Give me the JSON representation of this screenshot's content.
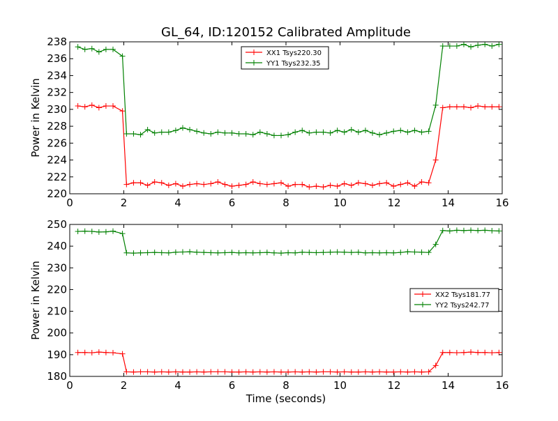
{
  "figure": {
    "title": "GL_64, ID:120152 Calibrated Amplitude"
  },
  "chart_data": [
    {
      "type": "line",
      "title": "GL_64, ID:120152 Calibrated Amplitude",
      "xlabel": "",
      "ylabel": "Power in Kelvin",
      "xlim": [
        0,
        16
      ],
      "ylim": [
        220,
        238
      ],
      "xticks": [
        "0",
        "2",
        "4",
        "6",
        "8",
        "10",
        "12",
        "14",
        "16"
      ],
      "yticks": [
        "220",
        "222",
        "224",
        "226",
        "228",
        "230",
        "232",
        "234",
        "236",
        "238"
      ],
      "grid": false,
      "legend_position": "top-center",
      "x": [
        0.3,
        0.56,
        0.82,
        1.08,
        1.34,
        1.6,
        1.95,
        2.1,
        2.36,
        2.62,
        2.88,
        3.14,
        3.4,
        3.66,
        3.92,
        4.18,
        4.44,
        4.7,
        4.96,
        5.22,
        5.48,
        5.74,
        6.0,
        6.26,
        6.52,
        6.78,
        7.04,
        7.3,
        7.56,
        7.82,
        8.08,
        8.34,
        8.6,
        8.86,
        9.12,
        9.38,
        9.64,
        9.9,
        10.16,
        10.42,
        10.68,
        10.94,
        11.2,
        11.46,
        11.72,
        11.98,
        12.24,
        12.5,
        12.76,
        13.02,
        13.28,
        13.54,
        13.8,
        14.06,
        14.32,
        14.58,
        14.84,
        15.1,
        15.36,
        15.62,
        15.88
      ],
      "series": [
        {
          "name": "XX1 Tsys220.30",
          "color": "#ff0000",
          "values": [
            230.4,
            230.3,
            230.5,
            230.2,
            230.4,
            230.4,
            229.8,
            221.1,
            221.3,
            221.3,
            221.0,
            221.4,
            221.3,
            221.0,
            221.2,
            220.9,
            221.1,
            221.2,
            221.1,
            221.2,
            221.4,
            221.1,
            220.9,
            221.0,
            221.1,
            221.4,
            221.2,
            221.1,
            221.2,
            221.3,
            220.9,
            221.1,
            221.1,
            220.8,
            220.9,
            220.8,
            221.0,
            220.9,
            221.2,
            221.0,
            221.3,
            221.2,
            221.0,
            221.2,
            221.3,
            220.9,
            221.1,
            221.3,
            220.9,
            221.4,
            221.3,
            224.0,
            230.2,
            230.3,
            230.3,
            230.3,
            230.2,
            230.4,
            230.3,
            230.3,
            230.3
          ]
        },
        {
          "name": "YY1 Tsys232.35",
          "color": "#008000",
          "values": [
            237.4,
            237.1,
            237.2,
            236.8,
            237.1,
            237.1,
            236.3,
            227.1,
            227.1,
            227.0,
            227.6,
            227.2,
            227.3,
            227.3,
            227.5,
            227.8,
            227.6,
            227.4,
            227.2,
            227.1,
            227.3,
            227.2,
            227.2,
            227.1,
            227.1,
            227.0,
            227.3,
            227.1,
            226.9,
            226.9,
            227.0,
            227.3,
            227.5,
            227.2,
            227.3,
            227.3,
            227.2,
            227.5,
            227.3,
            227.6,
            227.3,
            227.5,
            227.2,
            227.0,
            227.2,
            227.4,
            227.5,
            227.3,
            227.5,
            227.3,
            227.4,
            230.5,
            237.5,
            237.5,
            237.5,
            237.7,
            237.4,
            237.6,
            237.7,
            237.5,
            237.7
          ]
        }
      ]
    },
    {
      "type": "line",
      "title": "",
      "xlabel": "Time (seconds)",
      "ylabel": "Power in Kelvin",
      "xlim": [
        0,
        16
      ],
      "ylim": [
        180,
        250
      ],
      "xticks": [
        "0",
        "2",
        "4",
        "6",
        "8",
        "10",
        "12",
        "14",
        "16"
      ],
      "yticks": [
        "180",
        "190",
        "200",
        "210",
        "220",
        "230",
        "240",
        "250"
      ],
      "grid": false,
      "legend_position": "center-right",
      "x": [
        0.3,
        0.56,
        0.82,
        1.08,
        1.34,
        1.6,
        1.95,
        2.1,
        2.36,
        2.62,
        2.88,
        3.14,
        3.4,
        3.66,
        3.92,
        4.18,
        4.44,
        4.7,
        4.96,
        5.22,
        5.48,
        5.74,
        6.0,
        6.26,
        6.52,
        6.78,
        7.04,
        7.3,
        7.56,
        7.82,
        8.08,
        8.34,
        8.6,
        8.86,
        9.12,
        9.38,
        9.64,
        9.9,
        10.16,
        10.42,
        10.68,
        10.94,
        11.2,
        11.46,
        11.72,
        11.98,
        12.24,
        12.5,
        12.76,
        13.02,
        13.28,
        13.54,
        13.8,
        14.06,
        14.32,
        14.58,
        14.84,
        15.1,
        15.36,
        15.62,
        15.88
      ],
      "series": [
        {
          "name": "XX2 Tsys181.77",
          "color": "#ff0000",
          "values": [
            191.0,
            191.0,
            190.9,
            191.2,
            191.0,
            190.9,
            190.4,
            182.1,
            182.0,
            182.1,
            182.1,
            182.0,
            182.1,
            182.0,
            182.1,
            182.0,
            182.0,
            182.1,
            182.0,
            182.1,
            182.1,
            182.1,
            182.0,
            182.0,
            182.1,
            182.0,
            182.1,
            182.0,
            182.1,
            182.0,
            182.0,
            182.1,
            182.0,
            182.1,
            182.0,
            182.1,
            182.1,
            182.0,
            182.1,
            182.0,
            182.0,
            182.1,
            182.0,
            182.1,
            182.0,
            182.0,
            182.1,
            182.0,
            182.1,
            182.0,
            182.1,
            185.0,
            191.0,
            191.0,
            190.9,
            191.0,
            191.2,
            191.0,
            191.0,
            190.9,
            191.0
          ]
        },
        {
          "name": "YY2 Tsys242.77",
          "color": "#008000",
          "values": [
            246.8,
            246.9,
            246.8,
            246.5,
            246.6,
            246.9,
            245.8,
            236.9,
            236.8,
            236.9,
            237.0,
            237.1,
            237.0,
            236.9,
            237.2,
            237.3,
            237.4,
            237.2,
            237.1,
            237.0,
            236.9,
            237.0,
            237.1,
            236.9,
            237.0,
            236.9,
            237.0,
            237.1,
            236.9,
            236.8,
            237.0,
            236.9,
            237.2,
            237.1,
            237.0,
            237.1,
            237.2,
            237.3,
            237.2,
            237.1,
            237.2,
            236.9,
            237.0,
            236.9,
            237.0,
            236.9,
            237.1,
            237.4,
            237.3,
            237.2,
            237.1,
            240.8,
            247.2,
            247.0,
            247.3,
            247.2,
            247.3,
            247.2,
            247.3,
            247.1,
            247.0
          ]
        }
      ]
    }
  ]
}
